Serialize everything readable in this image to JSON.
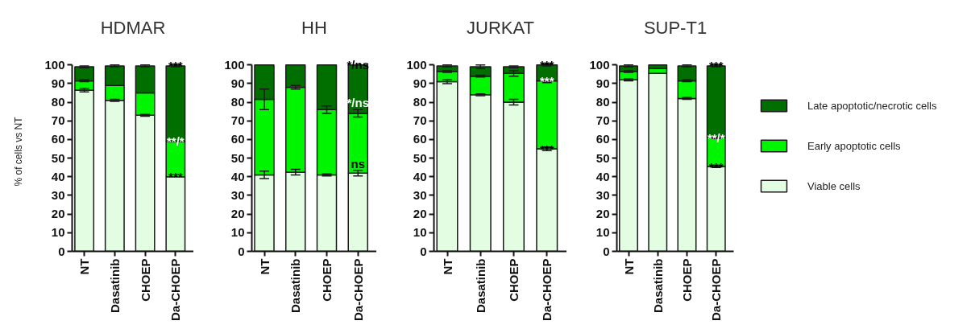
{
  "chart_data": [
    {
      "type": "bar",
      "title": "HDMAR",
      "ylabel": "% of cells vs NT",
      "categories": [
        "NT",
        "Dasatinib",
        "CHOEP",
        "Da-CHOEP"
      ],
      "stacked": true,
      "ylim": [
        0,
        100
      ],
      "yticks": [
        0,
        10,
        20,
        30,
        40,
        50,
        60,
        70,
        80,
        90,
        100
      ],
      "series": [
        {
          "color": "#e2fde2",
          "values": [
            86.5,
            81,
            73,
            40
          ],
          "errors": [
            1,
            0.5,
            0.5,
            null
          ]
        },
        {
          "color": "#00f500",
          "values": [
            5,
            8,
            12,
            19
          ],
          "errors": [
            0.5,
            null,
            null,
            null
          ]
        },
        {
          "color": "#006f00",
          "values": [
            7.5,
            10.5,
            14.5,
            40.5
          ],
          "errors": [
            0.5,
            0.5,
            0.5,
            0.5
          ]
        }
      ],
      "annotations": [
        {
          "text": "***",
          "x": "Da-CHOEP",
          "y": 99.5
        },
        {
          "text": "**/*",
          "x": "Da-CHOEP",
          "y": 59
        },
        {
          "text": "***",
          "x": "Da-CHOEP",
          "y": 40
        }
      ]
    },
    {
      "type": "bar",
      "title": "HH",
      "categories": [
        "NT",
        "Dasatinib",
        "CHOEP",
        "Da-CHOEP"
      ],
      "stacked": true,
      "ylim": [
        0,
        100
      ],
      "yticks": [
        0,
        10,
        20,
        30,
        40,
        50,
        60,
        70,
        80,
        90,
        100
      ],
      "series": [
        {
          "color": "#e2fde2",
          "values": [
            41,
            42.5,
            41,
            42
          ],
          "errors": [
            2,
            1.5,
            0.5,
            1.5
          ]
        },
        {
          "color": "#00f500",
          "values": [
            40.5,
            45.5,
            35,
            32
          ],
          "errors": [
            5.5,
            1,
            2,
            2
          ]
        },
        {
          "color": "#006f00",
          "values": [
            18.5,
            12,
            24,
            26
          ]
        }
      ],
      "annotations": [
        {
          "text": "*/ns",
          "x": "Da-CHOEP",
          "y": 100
        },
        {
          "text": "*/ns",
          "x": "Da-CHOEP",
          "y": 74
        },
        {
          "text": "ns",
          "x": "Da-CHOEP",
          "y": 42
        }
      ]
    },
    {
      "type": "bar",
      "title": "JURKAT",
      "categories": [
        "NT",
        "Dasatinib",
        "CHOEP",
        "Da-CHOEP"
      ],
      "stacked": true,
      "ylim": [
        0,
        100
      ],
      "yticks": [
        0,
        10,
        20,
        30,
        40,
        50,
        60,
        70,
        80,
        90,
        100
      ],
      "series": [
        {
          "color": "#e2fde2",
          "values": [
            91,
            84,
            80,
            55
          ],
          "errors": [
            1,
            0.5,
            1.5,
            1
          ]
        },
        {
          "color": "#00f500",
          "values": [
            5.5,
            10,
            15.5,
            36.5
          ],
          "errors": [
            0.5,
            0.5,
            1.5,
            1
          ]
        },
        {
          "color": "#006f00",
          "values": [
            3,
            5,
            3.5,
            8.5
          ],
          "errors": [
            0.5,
            1,
            0.5,
            0.5
          ]
        }
      ],
      "annotations": [
        {
          "text": "***",
          "x": "Da-CHOEP",
          "y": 100
        },
        {
          "text": "***",
          "x": "Da-CHOEP",
          "y": 91.5
        },
        {
          "text": "***",
          "x": "Da-CHOEP",
          "y": 55
        }
      ]
    },
    {
      "type": "bar",
      "title": "SUP-T1",
      "categories": [
        "NT",
        "Dasatinib",
        "CHOEP",
        "Da-CHOEP"
      ],
      "stacked": true,
      "ylim": [
        0,
        100
      ],
      "yticks": [
        0,
        10,
        20,
        30,
        40,
        50,
        60,
        70,
        80,
        90,
        100
      ],
      "legend": "right",
      "series": [
        {
          "name": "Viable cells",
          "color": "#e2fde2",
          "values": [
            92,
            95.5,
            82,
            45.5
          ],
          "errors": [
            0.5,
            null,
            0.5,
            0.5
          ]
        },
        {
          "name": "Early apoptotic cells",
          "color": "#00f500",
          "values": [
            4.5,
            2.5,
            9.5,
            15.5
          ],
          "errors": [
            0.5,
            null,
            0.5,
            0.5
          ]
        },
        {
          "name": "Late apoptotic/necrotic cells",
          "color": "#006f00",
          "values": [
            3,
            2,
            8,
            38.5
          ],
          "errors": [
            0.5,
            null,
            0.5,
            0.5
          ]
        }
      ],
      "annotations": [
        {
          "text": "***",
          "x": "Da-CHOEP",
          "y": 99.5
        },
        {
          "text": "**/*",
          "x": "Da-CHOEP",
          "y": 61
        },
        {
          "text": "***",
          "x": "Da-CHOEP",
          "y": 45.5
        }
      ]
    }
  ]
}
